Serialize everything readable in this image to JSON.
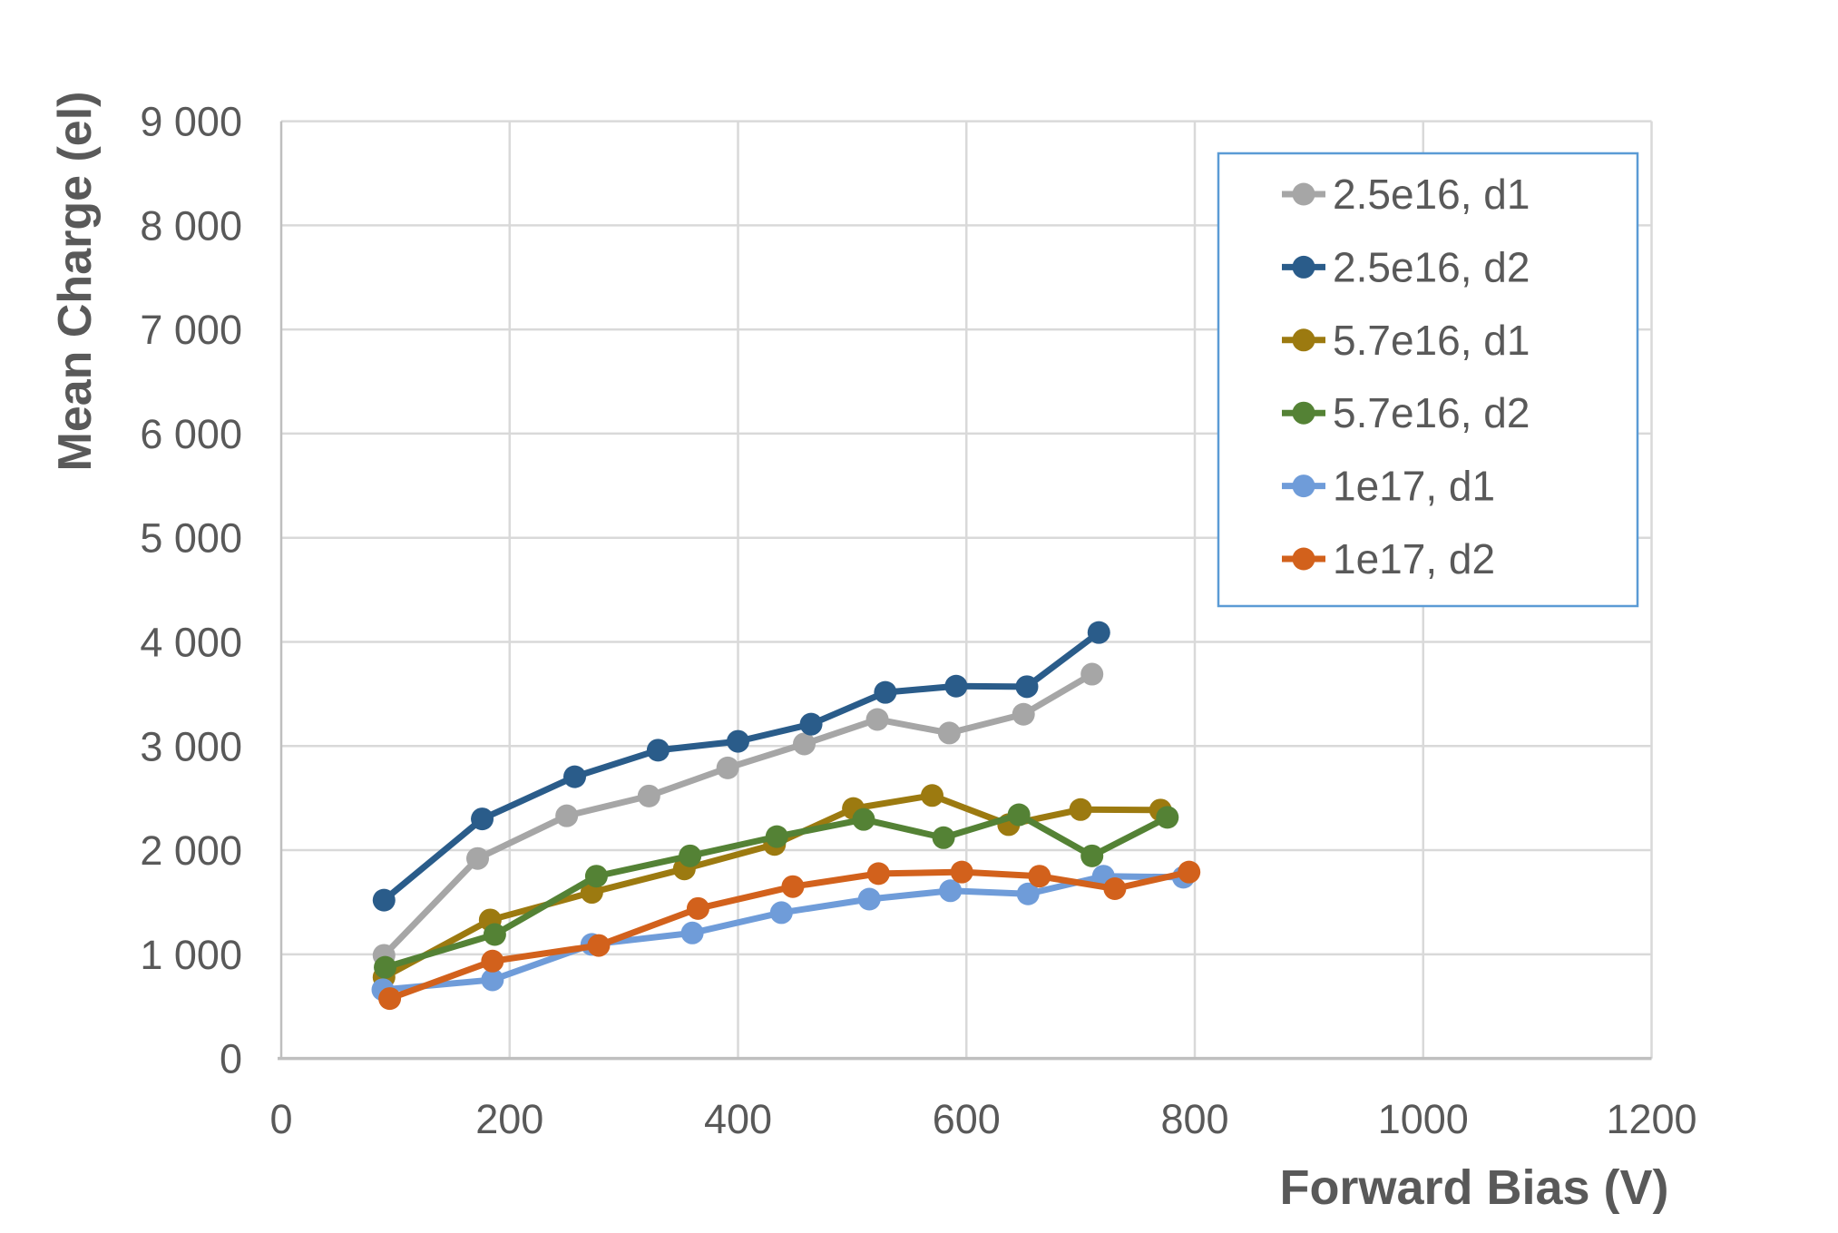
{
  "chart_data": {
    "type": "line",
    "title": "",
    "xlabel": "Forward Bias (V)",
    "ylabel": "Mean Charge (el)",
    "xlim": [
      0,
      1200
    ],
    "ylim": [
      0,
      9000
    ],
    "xticks": [
      0,
      200,
      400,
      600,
      800,
      1000,
      1200
    ],
    "xtick_labels": [
      "0",
      "200",
      "400",
      "600",
      "800",
      "1000",
      "1200"
    ],
    "yticks": [
      0,
      1000,
      2000,
      3000,
      4000,
      5000,
      6000,
      7000,
      8000,
      9000
    ],
    "ytick_labels": [
      "0",
      "1 000",
      "2 000",
      "3 000",
      "4 000",
      "5 000",
      "6 000",
      "7 000",
      "8 000",
      "9 000"
    ],
    "grid": true,
    "legend_position": "inside-top-right",
    "marker": "circle",
    "series": [
      {
        "name": "2.5e16, d1",
        "color": "#A6A6A6",
        "x": [
          90,
          172,
          250,
          322,
          391,
          458,
          522,
          585,
          650,
          710
        ],
        "y": [
          990,
          1920,
          2330,
          2520,
          2790,
          3020,
          3255,
          3125,
          3305,
          3690
        ]
      },
      {
        "name": "2.5e16, d2",
        "color": "#2A5C8A",
        "x": [
          90,
          176,
          257,
          330,
          400,
          464,
          529,
          591,
          653,
          716
        ],
        "y": [
          1520,
          2300,
          2705,
          2960,
          3045,
          3210,
          3515,
          3575,
          3570,
          4090
        ]
      },
      {
        "name": "5.7e16, d1",
        "color": "#9C7A10",
        "x": [
          90,
          183,
          272,
          353,
          432,
          501,
          570,
          637,
          700,
          770
        ],
        "y": [
          780,
          1330,
          1595,
          1820,
          2055,
          2400,
          2525,
          2245,
          2390,
          2385
        ]
      },
      {
        "name": "5.7e16, d2",
        "color": "#548235",
        "x": [
          91,
          187,
          276,
          358,
          434,
          510,
          580,
          646,
          710,
          776
        ],
        "y": [
          875,
          1190,
          1750,
          1945,
          2130,
          2295,
          2120,
          2340,
          1945,
          2315
        ]
      },
      {
        "name": "1e17, d1",
        "color": "#6F9CD9",
        "x": [
          89,
          185,
          272,
          360,
          438,
          515,
          586,
          654,
          720,
          790
        ],
        "y": [
          660,
          755,
          1095,
          1205,
          1400,
          1530,
          1610,
          1580,
          1750,
          1740
        ]
      },
      {
        "name": "1e17, d2",
        "color": "#D2611C",
        "x": [
          95,
          185,
          278,
          365,
          448,
          523,
          596,
          664,
          730,
          795
        ],
        "y": [
          575,
          935,
          1085,
          1440,
          1650,
          1775,
          1790,
          1750,
          1630,
          1790
        ]
      }
    ]
  },
  "colors": {
    "background": "#FFFFFF",
    "gridline": "#D9D9D9",
    "axis_line": "#BFBFBF",
    "axis_text": "#595959",
    "legend_border": "#5B9BD5",
    "legend_fill": "#FFFFFF"
  }
}
